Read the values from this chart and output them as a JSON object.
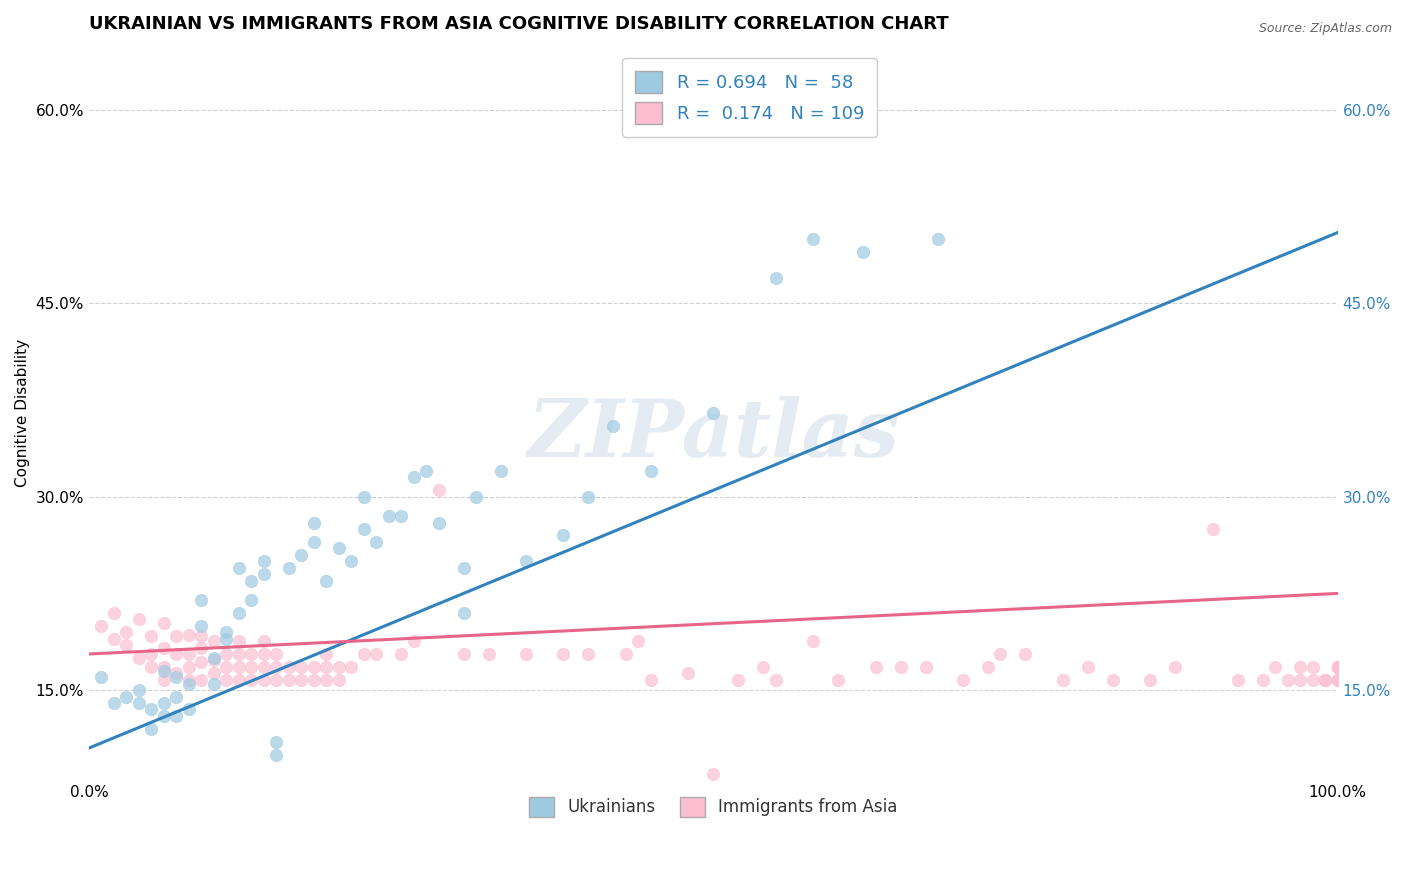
{
  "title": "UKRAINIAN VS IMMIGRANTS FROM ASIA COGNITIVE DISABILITY CORRELATION CHART",
  "source": "Source: ZipAtlas.com",
  "ylabel": "Cognitive Disability",
  "xlim": [
    0.0,
    1.0
  ],
  "ylim": [
    0.08,
    0.65
  ],
  "xticklabels_left": "0.0%",
  "xticklabels_right": "100.0%",
  "ytick_positions": [
    0.15,
    0.3,
    0.45,
    0.6
  ],
  "yticklabels": [
    "15.0%",
    "30.0%",
    "45.0%",
    "60.0%"
  ],
  "background_color": "#ffffff",
  "watermark": "ZIPatlas",
  "blue_color": "#9ecae1",
  "pink_color": "#fcbfd2",
  "blue_line_color": "#3182bd",
  "pink_line_color": "#e8658a",
  "R_blue": 0.694,
  "N_blue": 58,
  "R_pink": 0.174,
  "N_pink": 109,
  "legend_label_blue": "Ukrainians",
  "legend_label_pink": "Immigrants from Asia",
  "title_fontsize": 13,
  "label_fontsize": 11,
  "tick_fontsize": 11,
  "blue_line_x0": 0.0,
  "blue_line_y0": 0.105,
  "blue_line_x1": 1.0,
  "blue_line_y1": 0.505,
  "pink_line_x0": 0.0,
  "pink_line_y0": 0.178,
  "pink_line_x1": 1.0,
  "pink_line_y1": 0.225,
  "blue_scatter_x": [
    0.01,
    0.02,
    0.03,
    0.04,
    0.04,
    0.05,
    0.05,
    0.06,
    0.06,
    0.06,
    0.07,
    0.07,
    0.07,
    0.08,
    0.08,
    0.09,
    0.09,
    0.1,
    0.1,
    0.11,
    0.11,
    0.12,
    0.12,
    0.13,
    0.13,
    0.14,
    0.14,
    0.15,
    0.15,
    0.16,
    0.17,
    0.18,
    0.18,
    0.19,
    0.2,
    0.21,
    0.22,
    0.22,
    0.23,
    0.24,
    0.25,
    0.26,
    0.27,
    0.28,
    0.3,
    0.3,
    0.31,
    0.33,
    0.35,
    0.38,
    0.4,
    0.42,
    0.45,
    0.5,
    0.55,
    0.58,
    0.62,
    0.68
  ],
  "blue_scatter_y": [
    0.16,
    0.14,
    0.145,
    0.14,
    0.15,
    0.12,
    0.135,
    0.13,
    0.14,
    0.165,
    0.13,
    0.145,
    0.16,
    0.135,
    0.155,
    0.2,
    0.22,
    0.155,
    0.175,
    0.19,
    0.195,
    0.21,
    0.245,
    0.22,
    0.235,
    0.24,
    0.25,
    0.1,
    0.11,
    0.245,
    0.255,
    0.265,
    0.28,
    0.235,
    0.26,
    0.25,
    0.275,
    0.3,
    0.265,
    0.285,
    0.285,
    0.315,
    0.32,
    0.28,
    0.21,
    0.245,
    0.3,
    0.32,
    0.25,
    0.27,
    0.3,
    0.355,
    0.32,
    0.365,
    0.47,
    0.5,
    0.49,
    0.5
  ],
  "pink_scatter_x": [
    0.01,
    0.02,
    0.02,
    0.03,
    0.03,
    0.04,
    0.04,
    0.05,
    0.05,
    0.05,
    0.06,
    0.06,
    0.06,
    0.06,
    0.07,
    0.07,
    0.07,
    0.08,
    0.08,
    0.08,
    0.08,
    0.09,
    0.09,
    0.09,
    0.09,
    0.1,
    0.1,
    0.1,
    0.11,
    0.11,
    0.11,
    0.12,
    0.12,
    0.12,
    0.12,
    0.13,
    0.13,
    0.13,
    0.14,
    0.14,
    0.14,
    0.14,
    0.15,
    0.15,
    0.15,
    0.16,
    0.16,
    0.17,
    0.17,
    0.18,
    0.18,
    0.19,
    0.19,
    0.19,
    0.2,
    0.2,
    0.21,
    0.22,
    0.23,
    0.25,
    0.26,
    0.28,
    0.3,
    0.32,
    0.35,
    0.38,
    0.4,
    0.43,
    0.44,
    0.45,
    0.48,
    0.5,
    0.52,
    0.54,
    0.55,
    0.58,
    0.6,
    0.63,
    0.65,
    0.67,
    0.7,
    0.72,
    0.73,
    0.75,
    0.78,
    0.8,
    0.82,
    0.85,
    0.87,
    0.9,
    0.92,
    0.94,
    0.95,
    0.96,
    0.97,
    0.97,
    0.98,
    0.98,
    0.99,
    0.99,
    1.0,
    1.0,
    1.0,
    1.0,
    1.0,
    1.0,
    1.0,
    1.0,
    1.0
  ],
  "pink_scatter_y": [
    0.2,
    0.19,
    0.21,
    0.185,
    0.195,
    0.175,
    0.205,
    0.168,
    0.178,
    0.192,
    0.158,
    0.168,
    0.183,
    0.202,
    0.163,
    0.178,
    0.192,
    0.158,
    0.168,
    0.178,
    0.193,
    0.158,
    0.172,
    0.183,
    0.192,
    0.163,
    0.173,
    0.188,
    0.158,
    0.168,
    0.178,
    0.158,
    0.168,
    0.178,
    0.188,
    0.158,
    0.168,
    0.178,
    0.158,
    0.168,
    0.178,
    0.188,
    0.158,
    0.168,
    0.178,
    0.158,
    0.168,
    0.158,
    0.168,
    0.158,
    0.168,
    0.158,
    0.168,
    0.178,
    0.158,
    0.168,
    0.168,
    0.178,
    0.178,
    0.178,
    0.188,
    0.305,
    0.178,
    0.178,
    0.178,
    0.178,
    0.178,
    0.178,
    0.188,
    0.158,
    0.163,
    0.085,
    0.158,
    0.168,
    0.158,
    0.188,
    0.158,
    0.168,
    0.168,
    0.168,
    0.158,
    0.168,
    0.178,
    0.178,
    0.158,
    0.168,
    0.158,
    0.158,
    0.168,
    0.275,
    0.158,
    0.158,
    0.168,
    0.158,
    0.158,
    0.168,
    0.158,
    0.168,
    0.158,
    0.158,
    0.168,
    0.158,
    0.168,
    0.158,
    0.168,
    0.158,
    0.168,
    0.168,
    0.168
  ]
}
